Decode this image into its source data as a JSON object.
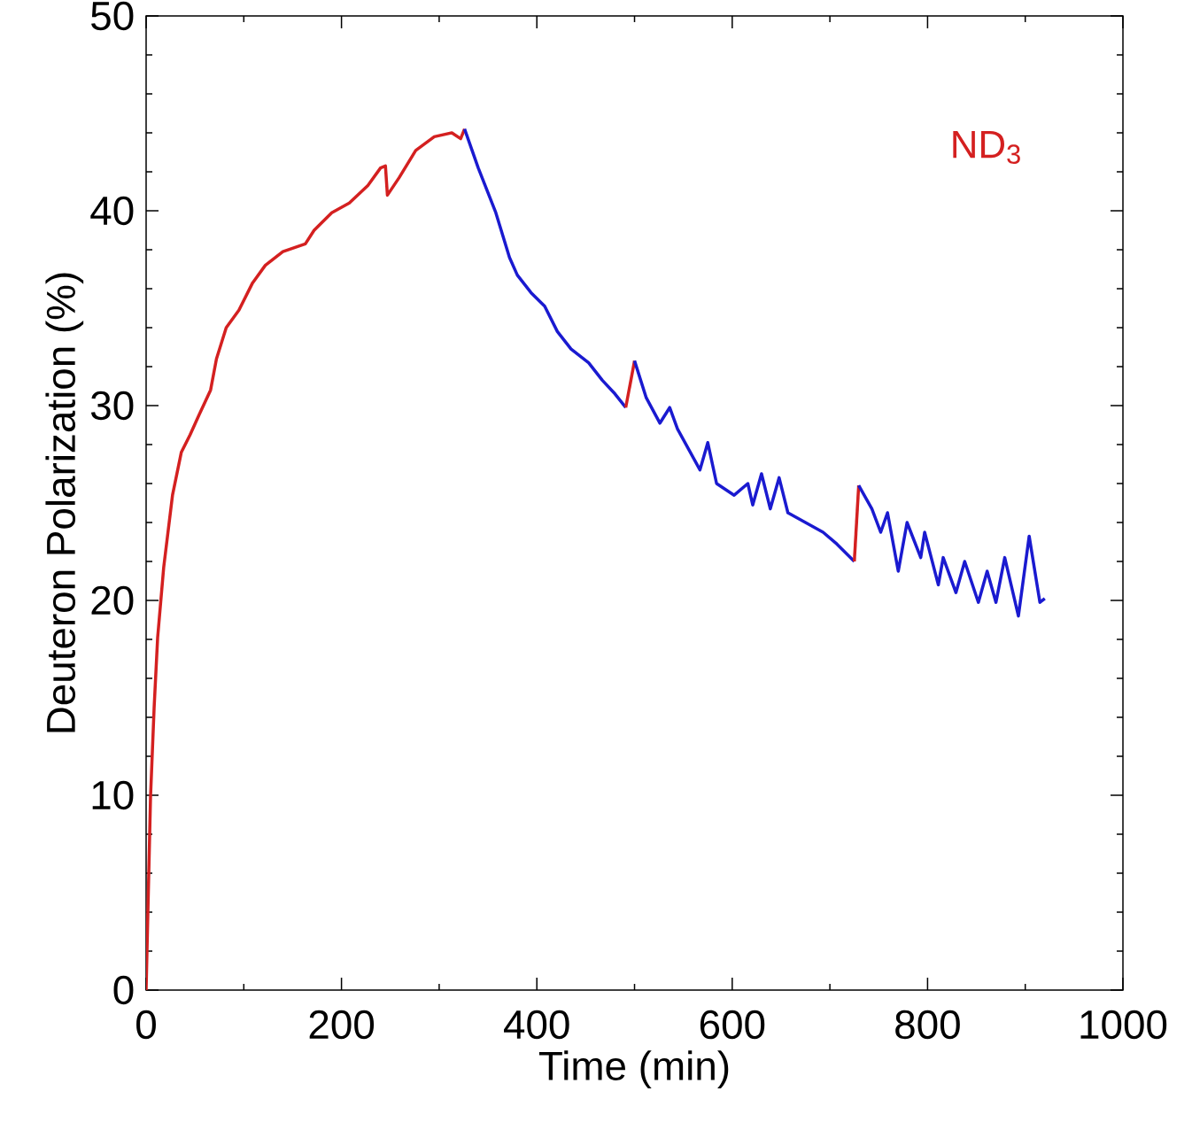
{
  "chart_data": {
    "type": "line",
    "xlabel": "Time (min)",
    "ylabel": "Deuteron Polarization (%)",
    "annotations": [
      "ND$_{3}$"
    ],
    "xlim": [
      0,
      1000
    ],
    "xticks": [
      0,
      200,
      400,
      600,
      800,
      1000
    ],
    "ylim": [
      0,
      50
    ],
    "yticks": [
      0,
      10,
      20,
      30,
      40,
      50
    ],
    "series": [
      {
        "color": "#d42020",
        "x": [
          0,
          1.8,
          4.5,
          8.2,
          11.8,
          18,
          27,
          36,
          45,
          54,
          66,
          72,
          82,
          95,
          109,
          122,
          140,
          163,
          172,
          190,
          208,
          227,
          240,
          245,
          247,
          259,
          276,
          295,
          313,
          322,
          326
        ],
        "values": [
          0,
          4,
          9.9,
          14.5,
          18.1,
          21.7,
          25.4,
          27.6,
          28.5,
          29.5,
          30.8,
          32.4,
          34,
          34.9,
          36.3,
          37.2,
          37.9,
          38.3,
          39,
          39.9,
          40.4,
          41.3,
          42.2,
          42.3,
          40.8,
          41.7,
          43.1,
          43.8,
          44,
          43.7,
          44.2
        ]
      },
      {
        "color": "#1a1ad0",
        "x": [
          326,
          340,
          358,
          372,
          380,
          394,
          408,
          421,
          435,
          453,
          467,
          480,
          491
        ],
        "values": [
          44.2,
          42.2,
          39.9,
          37.6,
          36.7,
          35.8,
          35.1,
          33.8,
          32.9,
          32.2,
          31.3,
          30.6,
          29.9
        ]
      },
      {
        "color": "#d42020",
        "x": [
          491,
          500
        ],
        "values": [
          29.9,
          32.3
        ]
      },
      {
        "color": "#1a1ad0",
        "x": [
          500,
          512,
          526,
          536,
          544,
          567,
          575,
          584,
          602,
          616,
          621,
          630,
          639,
          648,
          657,
          675,
          693,
          707,
          725
        ],
        "values": [
          32.3,
          30.4,
          29.1,
          29.9,
          28.8,
          26.7,
          28.1,
          26,
          25.4,
          26,
          24.9,
          26.5,
          24.7,
          26.3,
          24.5,
          24,
          23.5,
          22.9,
          22
        ]
      },
      {
        "color": "#d42020",
        "x": [
          725,
          729.5
        ],
        "values": [
          22,
          25.9
        ]
      },
      {
        "color": "#1a1ad0",
        "x": [
          729.5,
          743,
          752,
          759,
          770,
          779,
          793,
          797,
          811,
          816,
          829,
          838,
          852,
          861,
          870,
          879,
          893,
          904,
          915,
          920
        ],
        "values": [
          25.9,
          24.7,
          23.5,
          24.5,
          21.5,
          24,
          22.2,
          23.5,
          20.8,
          22.2,
          20.4,
          22,
          19.9,
          21.5,
          19.9,
          22.2,
          19.2,
          23.3,
          19.9,
          20.1
        ]
      }
    ]
  }
}
